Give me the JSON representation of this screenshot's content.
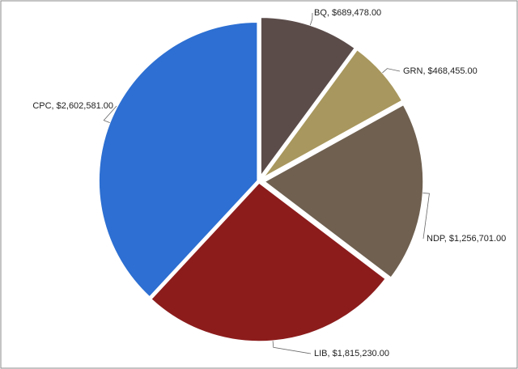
{
  "chart_data": {
    "type": "pie",
    "values": [
      689478,
      468455,
      1256701,
      1815230,
      2602581
    ],
    "value_labels": [
      "BQ, $689,478.00",
      "GRN, $468,455.00",
      "NDP, $1,256,701.00",
      "LIB, $1,815,230.00",
      "CPC, $2,602,581.00"
    ],
    "colors": [
      "#5b4c4a",
      "#a8975e",
      "#6f6050",
      "#8c1c1c",
      "#2d6fd2"
    ]
  }
}
